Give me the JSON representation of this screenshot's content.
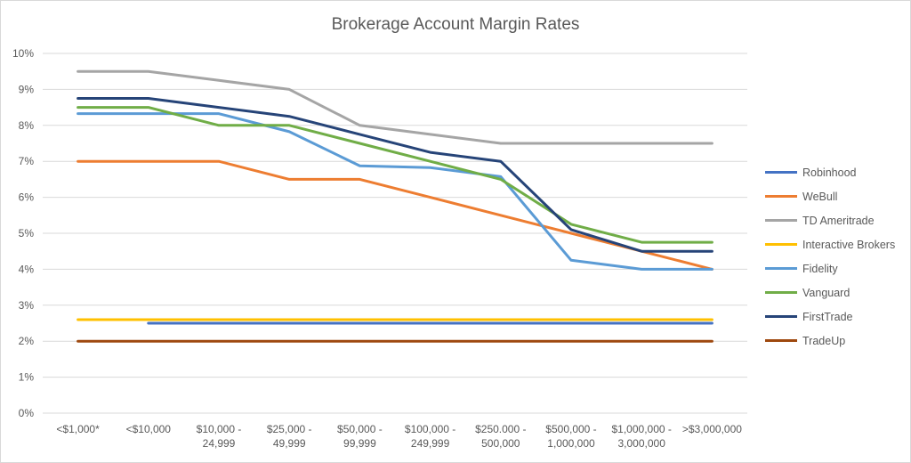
{
  "chart_data": {
    "type": "line",
    "title": "Brokerage Account Margin Rates",
    "xlabel": "",
    "ylabel": "",
    "ylim": [
      0,
      10
    ],
    "yticks": [
      "0%",
      "1%",
      "2%",
      "3%",
      "4%",
      "5%",
      "6%",
      "7%",
      "8%",
      "9%",
      "10%"
    ],
    "grid": true,
    "legend_position": "right",
    "categories": [
      [
        "<$1,000*"
      ],
      [
        "<$10,000"
      ],
      [
        "$10,000 -",
        "24,999"
      ],
      [
        "$25,000 -",
        "49,999"
      ],
      [
        "$50,000 -",
        "99,999"
      ],
      [
        "$100,000 -",
        "249,999"
      ],
      [
        "$250.000 -",
        "500,000"
      ],
      [
        "$500,000 -",
        "1,000,000"
      ],
      [
        "$1,000,000 -",
        "3,000,000"
      ],
      [
        ">$3,000,000"
      ]
    ],
    "series": [
      {
        "name": "Robinhood",
        "color": "#4472c4",
        "values": [
          null,
          2.5,
          2.5,
          2.5,
          2.5,
          2.5,
          2.5,
          2.5,
          2.5,
          2.5
        ]
      },
      {
        "name": "WeBull",
        "color": "#ed7d31",
        "values": [
          7.0,
          7.0,
          7.0,
          6.5,
          6.5,
          6.0,
          5.5,
          5.0,
          4.5,
          4.0
        ]
      },
      {
        "name": "TD Ameritrade",
        "color": "#a5a5a5",
        "values": [
          9.5,
          9.5,
          9.25,
          9.0,
          8.0,
          7.75,
          7.5,
          7.5,
          7.5,
          7.5
        ]
      },
      {
        "name": "Interactive Brokers",
        "color": "#ffc000",
        "values": [
          2.6,
          2.6,
          2.6,
          2.6,
          2.6,
          2.6,
          2.6,
          2.6,
          2.6,
          2.6
        ]
      },
      {
        "name": "Fidelity",
        "color": "#5b9bd5",
        "values": [
          8.325,
          8.325,
          8.325,
          7.825,
          6.875,
          6.825,
          6.575,
          4.25,
          4.0,
          4.0
        ]
      },
      {
        "name": "Vanguard",
        "color": "#70ad47",
        "values": [
          8.5,
          8.5,
          8.0,
          8.0,
          7.5,
          7.0,
          6.5,
          5.25,
          4.75,
          4.75
        ]
      },
      {
        "name": "FirstTrade",
        "color": "#264478",
        "values": [
          8.75,
          8.75,
          8.5,
          8.25,
          7.75,
          7.25,
          7.0,
          5.1,
          4.5,
          4.5
        ]
      },
      {
        "name": "TradeUp",
        "color": "#9e480e",
        "values": [
          2.0,
          2.0,
          2.0,
          2.0,
          2.0,
          2.0,
          2.0,
          2.0,
          2.0,
          2.0
        ]
      }
    ]
  }
}
